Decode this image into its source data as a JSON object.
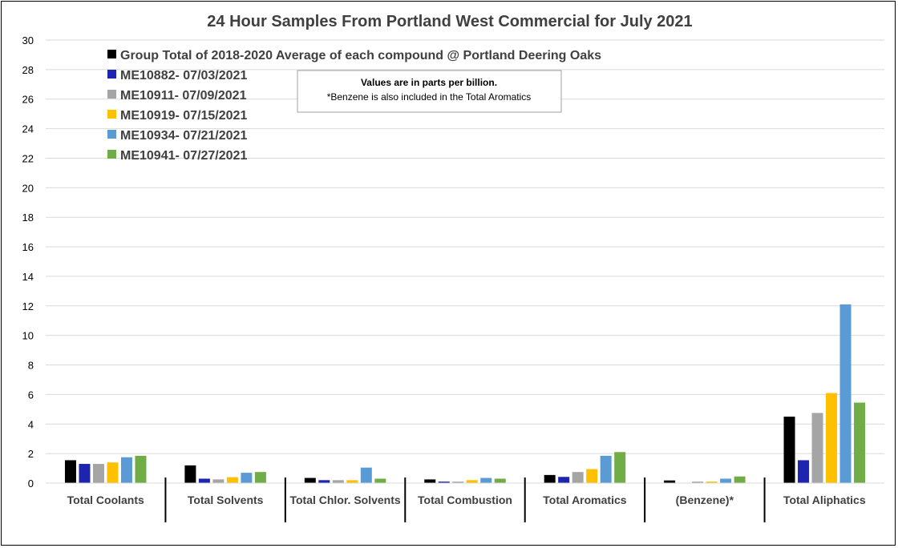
{
  "chart_data": {
    "type": "bar",
    "title": "24 Hour Samples From Portland West Commercial for July 2021",
    "xlabel": "",
    "ylabel": "",
    "ylim": [
      0,
      30
    ],
    "yticks": [
      0,
      2,
      4,
      6,
      8,
      10,
      12,
      14,
      16,
      18,
      20,
      22,
      24,
      26,
      28,
      30
    ],
    "grid": true,
    "legend_position": "top-left",
    "categories": [
      "Total Coolants",
      "Total Solvents",
      "Total Chlor. Solvents",
      "Total Combustion",
      "Total Aromatics",
      "(Benzene)*",
      "Total Aliphatics"
    ],
    "series": [
      {
        "name": "Group Total of 2018-2020 Average of each compound @ Portland Deering Oaks",
        "color": "#000000",
        "values": [
          1.55,
          1.2,
          0.35,
          0.25,
          0.55,
          0.18,
          4.5
        ]
      },
      {
        "name": "ME10882- 07/03/2021",
        "color": "#1c24b0",
        "values": [
          1.3,
          0.3,
          0.2,
          0.1,
          0.42,
          0.0,
          1.55
        ]
      },
      {
        "name": "ME10911- 07/09/2021",
        "color": "#a5a5a5",
        "values": [
          1.3,
          0.25,
          0.2,
          0.1,
          0.75,
          0.1,
          4.75
        ]
      },
      {
        "name": "ME10919- 07/15/2021",
        "color": "#ffc000",
        "values": [
          1.4,
          0.4,
          0.2,
          0.2,
          0.95,
          0.1,
          6.1
        ]
      },
      {
        "name": "ME10934- 07/21/2021",
        "color": "#5b9bd5",
        "values": [
          1.75,
          0.7,
          1.05,
          0.35,
          1.85,
          0.3,
          12.1
        ]
      },
      {
        "name": "ME10941- 07/27/2021",
        "color": "#70ad47",
        "values": [
          1.85,
          0.75,
          0.3,
          0.3,
          2.1,
          0.45,
          5.45
        ]
      }
    ],
    "annotation": {
      "line1": "Values are in parts per billion.",
      "line2": "*Benzene is also included in the Total Aromatics"
    }
  }
}
